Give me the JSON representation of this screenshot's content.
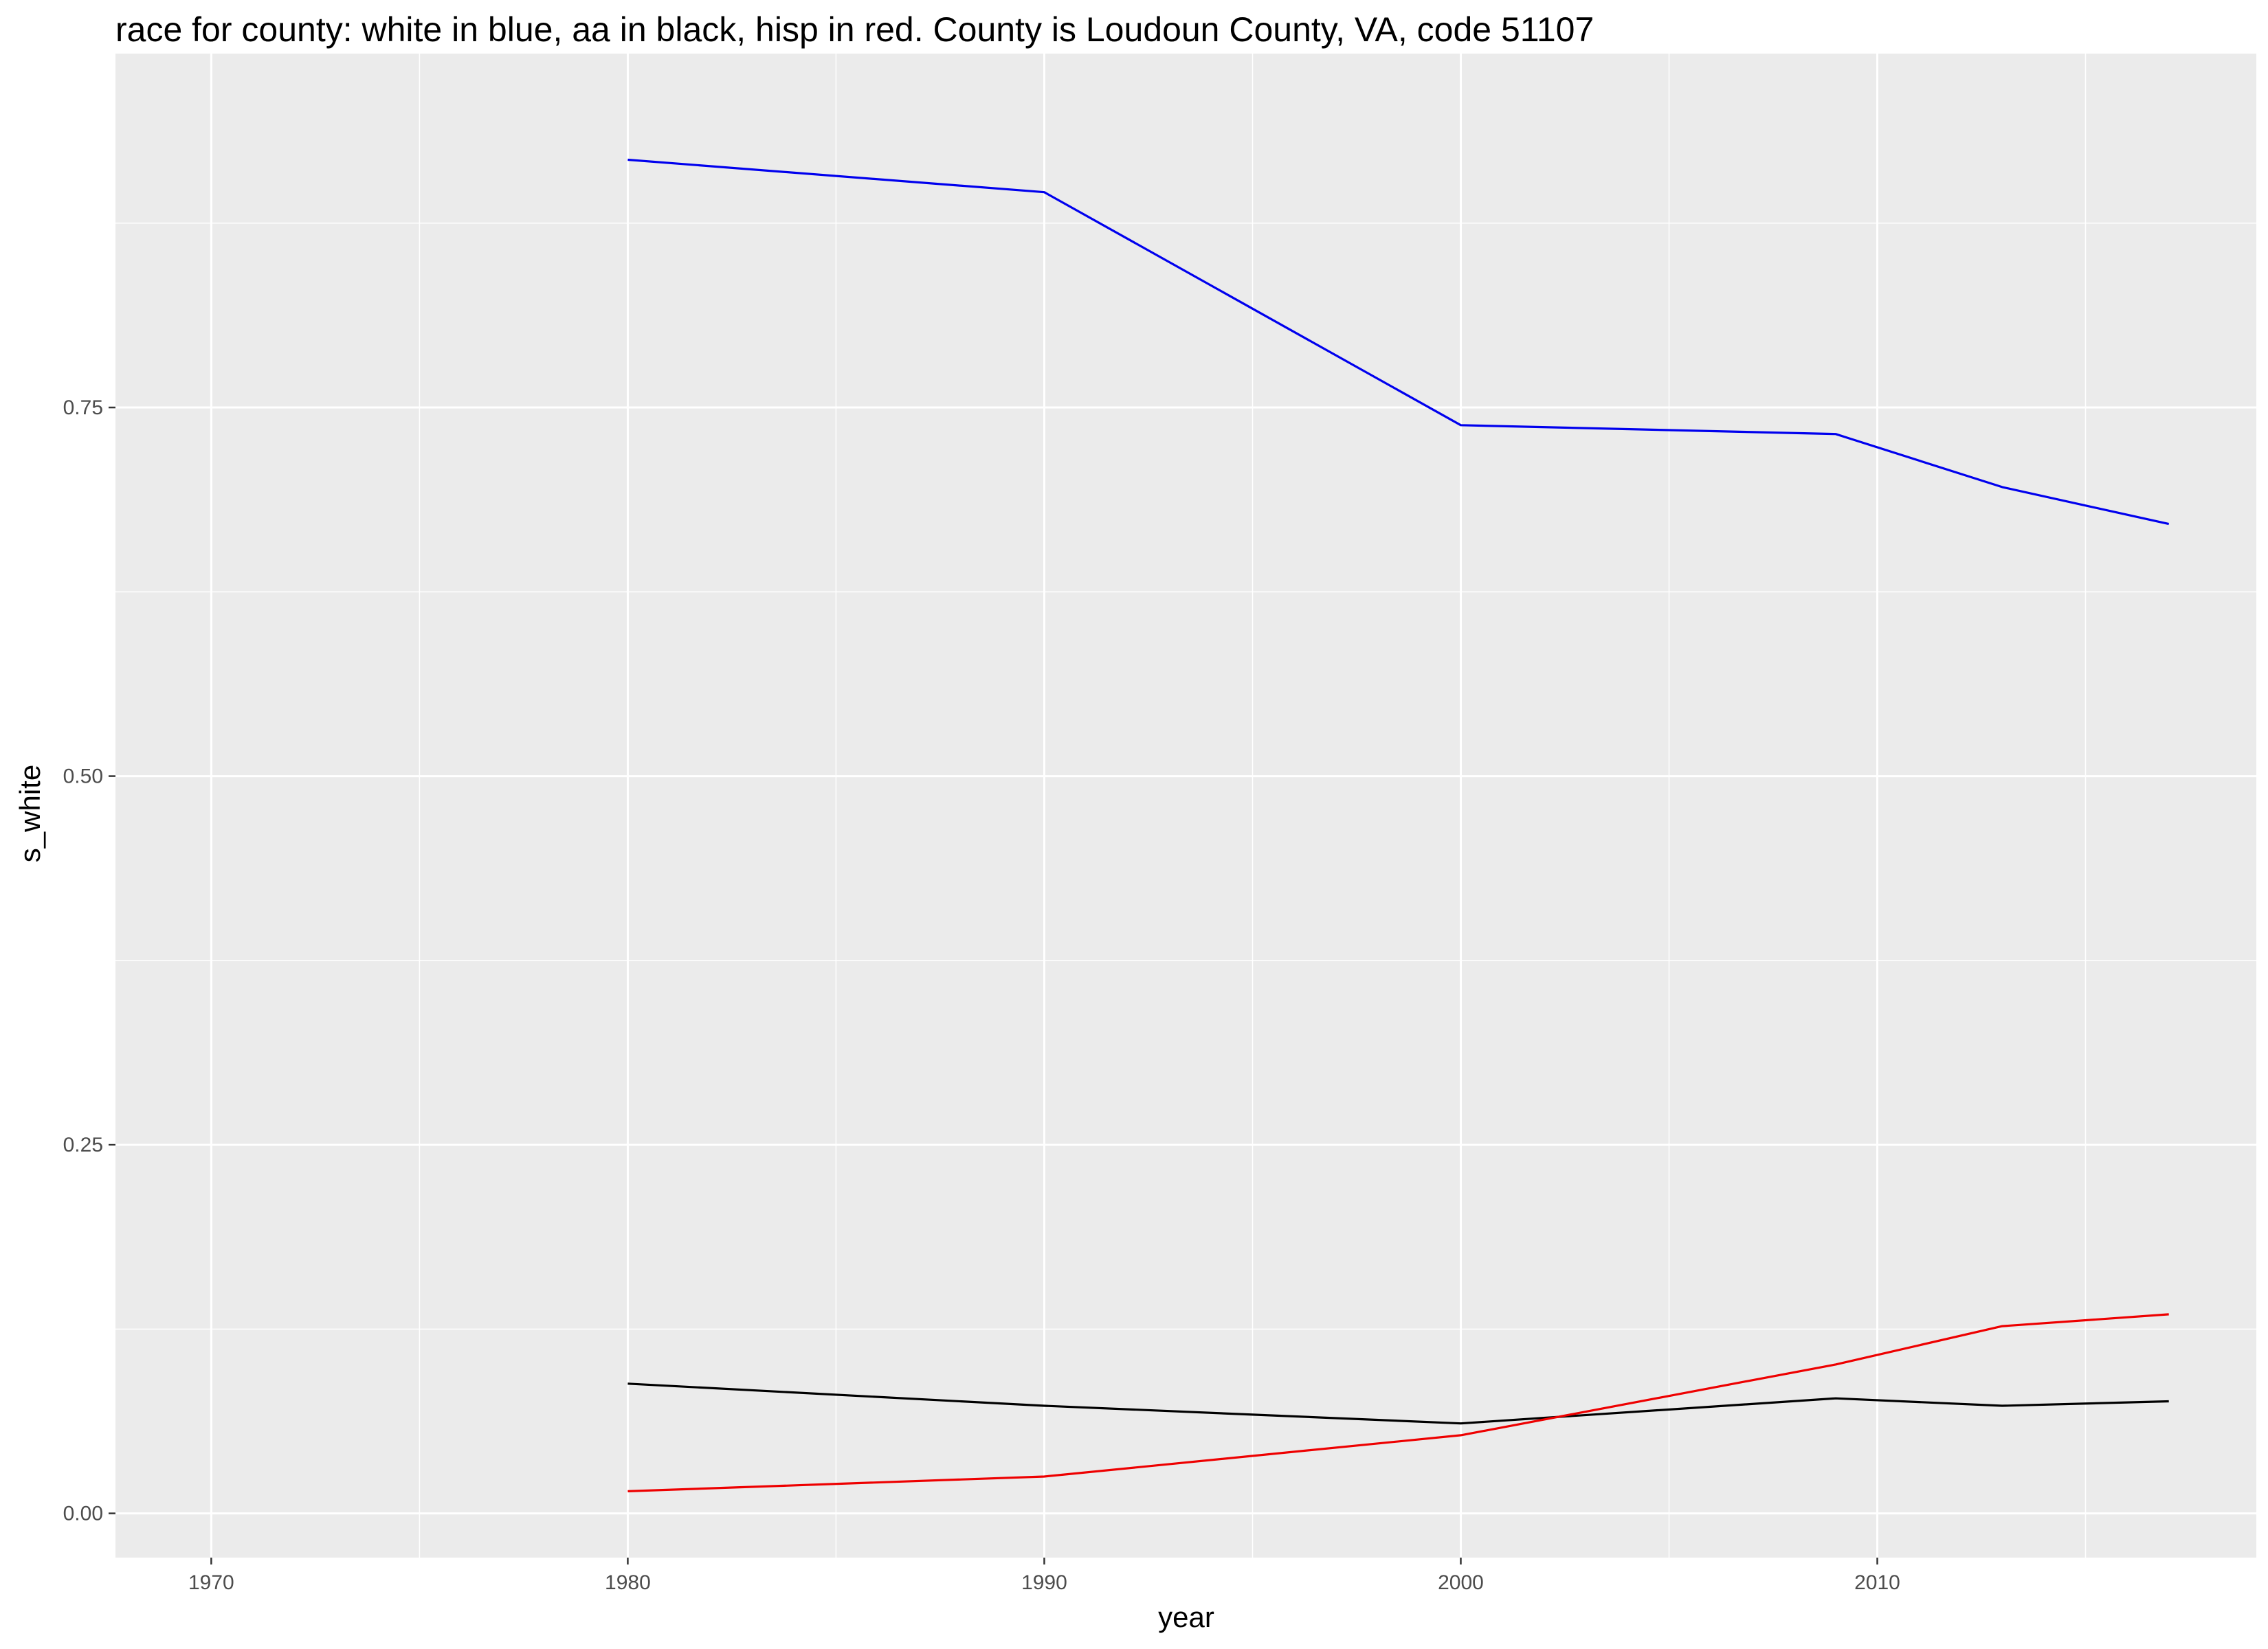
{
  "chart_data": {
    "type": "line",
    "title": "race for county: white in blue, aa in black, hisp in red. County is Loudoun County, VA, code 51107",
    "xlabel": "year",
    "ylabel": "s_white",
    "xlim": [
      1967.7,
      2019.1
    ],
    "ylim": [
      -0.03,
      0.99
    ],
    "x_ticks": [
      1970,
      1980,
      1990,
      2000,
      2010
    ],
    "x_tick_labels": [
      "1970",
      "1980",
      "1990",
      "2000",
      "2010"
    ],
    "y_ticks": [
      0.0,
      0.25,
      0.5,
      0.75
    ],
    "y_tick_labels": [
      "0.00",
      "0.25",
      "0.50",
      "0.75"
    ],
    "x_minor_ticks": [
      1975,
      1985,
      1995,
      2005,
      2015
    ],
    "y_minor_ticks": [
      0.125,
      0.375,
      0.625,
      0.875
    ],
    "grid": true,
    "panel_background": "#ebebeb",
    "grid_color": "#ffffff",
    "series": [
      {
        "color": "#0000ee",
        "x": [
          1980,
          1990,
          2000,
          2009,
          2013,
          2017
        ],
        "y": [
          0.918,
          0.896,
          0.738,
          0.732,
          0.696,
          0.671
        ]
      },
      {
        "color": "#000000",
        "x": [
          1980,
          1990,
          2000,
          2009,
          2013,
          2017
        ],
        "y": [
          0.088,
          0.073,
          0.061,
          0.078,
          0.073,
          0.076
        ]
      },
      {
        "color": "#ee0000",
        "x": [
          1980,
          1990,
          2000,
          2009,
          2013,
          2017
        ],
        "y": [
          0.015,
          0.025,
          0.053,
          0.101,
          0.127,
          0.135
        ]
      }
    ]
  }
}
